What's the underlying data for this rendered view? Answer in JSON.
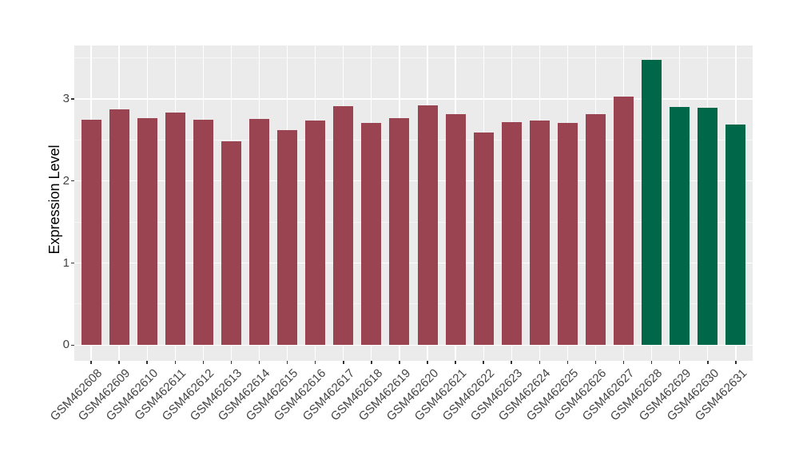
{
  "chart_data": {
    "type": "bar",
    "title": "",
    "xlabel": "",
    "ylabel": "Expression Level",
    "categories": [
      "GSM462608",
      "GSM462609",
      "GSM462610",
      "GSM462611",
      "GSM462612",
      "GSM462613",
      "GSM462614",
      "GSM462615",
      "GSM462616",
      "GSM462617",
      "GSM462618",
      "GSM462619",
      "GSM462620",
      "GSM462621",
      "GSM462622",
      "GSM462623",
      "GSM462624",
      "GSM462625",
      "GSM462626",
      "GSM462627",
      "GSM462628",
      "GSM462629",
      "GSM462630",
      "GSM462631"
    ],
    "values": [
      2.75,
      2.87,
      2.77,
      2.83,
      2.75,
      2.48,
      2.76,
      2.62,
      2.74,
      2.91,
      2.71,
      2.77,
      2.92,
      2.81,
      2.59,
      2.72,
      2.74,
      2.71,
      2.81,
      3.03,
      3.48,
      2.9,
      2.89,
      2.69
    ],
    "bar_groups": [
      "group1",
      "group1",
      "group1",
      "group1",
      "group1",
      "group1",
      "group1",
      "group1",
      "group1",
      "group1",
      "group1",
      "group1",
      "group1",
      "group1",
      "group1",
      "group1",
      "group1",
      "group1",
      "group1",
      "group1",
      "group2",
      "group2",
      "group2",
      "group2"
    ],
    "group_colors": {
      "group1": "#9B4451",
      "group2": "#006749"
    },
    "yticks": [
      0,
      1,
      2,
      3
    ],
    "ylim": [
      0,
      3.65
    ],
    "legend": "none",
    "style": {
      "panel_background": "#EBEBEB",
      "major_gridline": "#FFFFFF",
      "minor_gridline": "#FFFFFF",
      "tick_color": "#333333",
      "axis_text_color": "#444444",
      "axis_title_color": "#000000"
    }
  }
}
